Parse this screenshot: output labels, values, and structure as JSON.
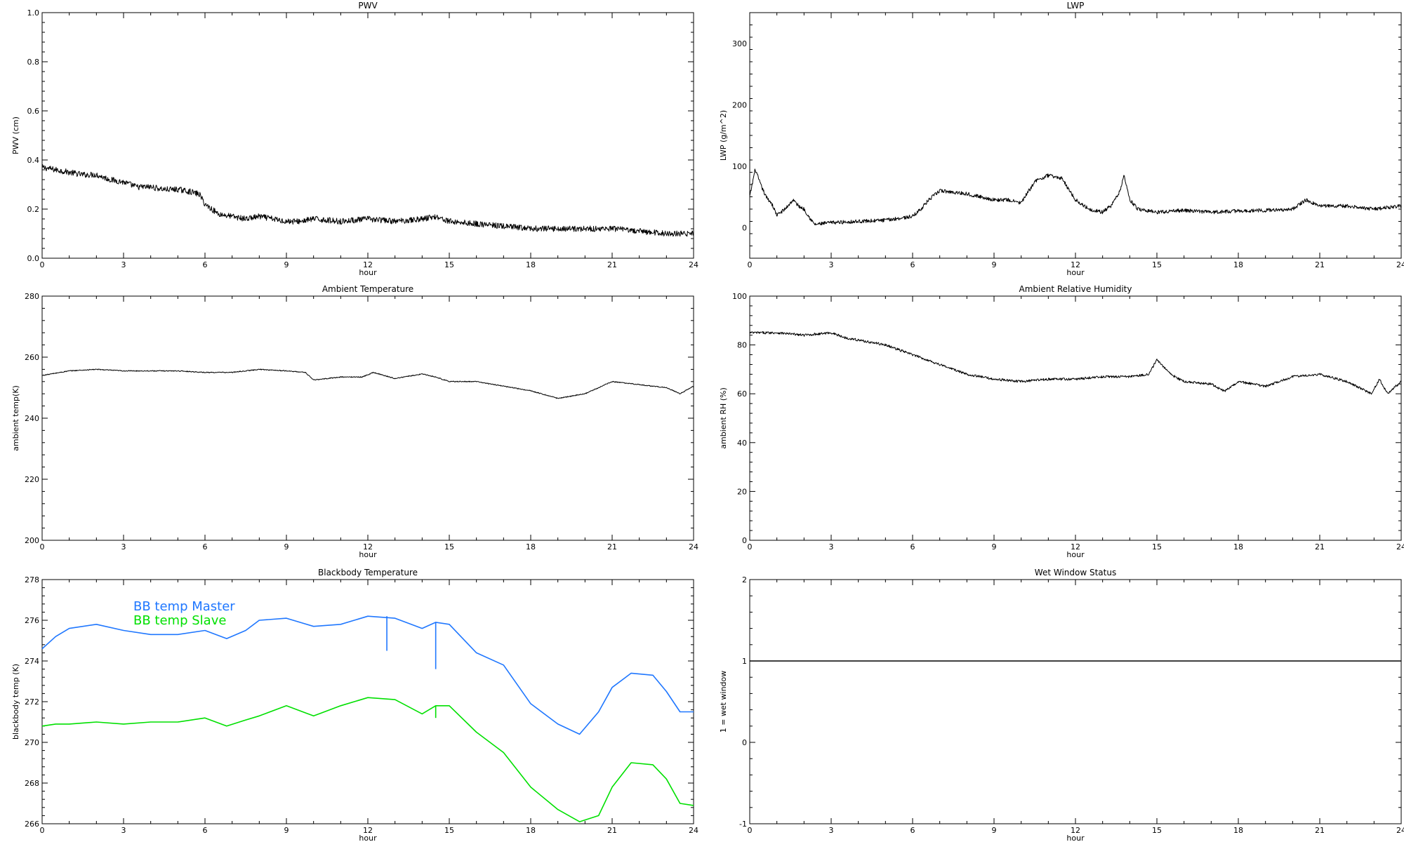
{
  "chart_data": [
    {
      "type": "line",
      "title": "PWV",
      "xlabel": "hour",
      "ylabel": "PWV (cm)",
      "xlim": [
        0,
        24
      ],
      "ylim": [
        0,
        1.0
      ],
      "xticks": [
        0,
        3,
        6,
        9,
        12,
        15,
        18,
        21,
        24
      ],
      "yticks": [
        0.0,
        0.2,
        0.4,
        0.6,
        0.8,
        1.0
      ],
      "ytick_labels": [
        "0.0",
        "0.2",
        "0.4",
        "0.6",
        "0.8",
        "1.0"
      ],
      "grid": false,
      "noise": 0.012,
      "series": [
        {
          "color": "#000000",
          "x": [
            0,
            0.5,
            1,
            1.5,
            2,
            2.5,
            3,
            3.5,
            4,
            4.5,
            5,
            5.5,
            5.8,
            6,
            6.5,
            7,
            7.5,
            8,
            8.5,
            9,
            9.5,
            10,
            11,
            12,
            13,
            14,
            14.5,
            15,
            16,
            17,
            18,
            19,
            20,
            21,
            22,
            23,
            24
          ],
          "y": [
            0.37,
            0.36,
            0.35,
            0.34,
            0.34,
            0.32,
            0.31,
            0.29,
            0.29,
            0.28,
            0.28,
            0.27,
            0.26,
            0.22,
            0.18,
            0.17,
            0.16,
            0.17,
            0.16,
            0.15,
            0.15,
            0.16,
            0.15,
            0.16,
            0.15,
            0.16,
            0.17,
            0.15,
            0.14,
            0.13,
            0.12,
            0.12,
            0.12,
            0.12,
            0.11,
            0.1,
            0.1
          ]
        }
      ]
    },
    {
      "type": "line",
      "title": "LWP",
      "xlabel": "hour",
      "ylabel": "LWP (g/m^2)",
      "xlim": [
        0,
        24
      ],
      "ylim": [
        -50,
        350
      ],
      "xticks": [
        0,
        3,
        6,
        9,
        12,
        15,
        18,
        21,
        24
      ],
      "yticks": [
        0,
        100,
        200,
        300
      ],
      "ytick_labels": [
        "0",
        "100",
        "200",
        "300"
      ],
      "grid": false,
      "noise": 3,
      "series": [
        {
          "color": "#000000",
          "x": [
            0,
            0.2,
            0.4,
            0.6,
            0.8,
            1,
            1.3,
            1.6,
            1.8,
            2,
            2.3,
            2.4,
            3,
            4,
            5,
            6,
            6.3,
            6.6,
            7,
            8,
            8.5,
            9,
            9.5,
            10,
            10.5,
            11,
            11.5,
            12,
            12.5,
            13,
            13.3,
            13.6,
            13.8,
            14,
            14.3,
            14.6,
            15,
            16,
            17,
            18,
            19,
            20,
            20.5,
            21,
            22,
            23,
            24
          ],
          "y": [
            50,
            95,
            70,
            50,
            40,
            20,
            30,
            45,
            35,
            30,
            10,
            5,
            8,
            10,
            12,
            18,
            30,
            45,
            60,
            55,
            50,
            45,
            45,
            40,
            75,
            85,
            80,
            45,
            30,
            25,
            35,
            55,
            85,
            45,
            30,
            28,
            25,
            28,
            25,
            27,
            28,
            30,
            45,
            35,
            35,
            30,
            35
          ]
        }
      ]
    },
    {
      "type": "line",
      "title": "Ambient Temperature",
      "xlabel": "hour",
      "ylabel": "ambient temp(K)",
      "xlim": [
        0,
        24
      ],
      "ylim": [
        200,
        280
      ],
      "xticks": [
        0,
        3,
        6,
        9,
        12,
        15,
        18,
        21,
        24
      ],
      "yticks": [
        200,
        220,
        240,
        260,
        280
      ],
      "ytick_labels": [
        "200",
        "220",
        "240",
        "260",
        "280"
      ],
      "grid": false,
      "noise": 0.15,
      "series": [
        {
          "color": "#000000",
          "x": [
            0,
            1,
            2,
            3,
            4,
            5,
            6,
            7,
            8,
            9,
            9.7,
            10,
            11,
            11.8,
            12.2,
            13,
            14,
            14.5,
            15,
            16,
            17,
            18,
            19,
            20,
            21,
            22,
            23,
            23.5,
            24
          ],
          "y": [
            254,
            255.5,
            256,
            255.5,
            255.5,
            255.5,
            255,
            255,
            256,
            255.5,
            255,
            252.5,
            253.5,
            253.5,
            255,
            253,
            254.5,
            253.5,
            252,
            252,
            250.5,
            249,
            246.5,
            248,
            252,
            251,
            250,
            248,
            250.5
          ]
        }
      ]
    },
    {
      "type": "line",
      "title": "Ambient Relative Humidity",
      "xlabel": "hour",
      "ylabel": "ambient RH (%)",
      "xlim": [
        0,
        24
      ],
      "ylim": [
        0,
        100
      ],
      "xticks": [
        0,
        3,
        6,
        9,
        12,
        15,
        18,
        21,
        24
      ],
      "yticks": [
        0,
        20,
        40,
        60,
        80,
        100
      ],
      "ytick_labels": [
        "0",
        "20",
        "40",
        "60",
        "80",
        "100"
      ],
      "grid": false,
      "noise": 0.5,
      "series": [
        {
          "color": "#000000",
          "x": [
            0,
            1,
            2,
            3,
            3.5,
            4,
            5,
            6,
            7,
            8,
            9,
            10,
            11,
            12,
            13,
            14,
            14.7,
            15,
            15.5,
            16,
            17,
            17.5,
            18,
            19,
            20,
            21,
            22,
            22.9,
            23.2,
            23.5,
            24
          ],
          "y": [
            85,
            85,
            84,
            85,
            83,
            82,
            80,
            76,
            72,
            68,
            66,
            65,
            66,
            66,
            67,
            67,
            68,
            74,
            68,
            65,
            64,
            61,
            65,
            63,
            67,
            68,
            65,
            60,
            66,
            60,
            65
          ]
        }
      ]
    },
    {
      "type": "line",
      "title": "Blackbody Temperature",
      "xlabel": "hour",
      "ylabel": "blackbody temp (K)",
      "xlim": [
        0,
        24
      ],
      "ylim": [
        266,
        278
      ],
      "xticks": [
        0,
        3,
        6,
        9,
        12,
        15,
        18,
        21,
        24
      ],
      "yticks": [
        266,
        268,
        270,
        272,
        274,
        276,
        278
      ],
      "ytick_labels": [
        "266",
        "268",
        "270",
        "272",
        "274",
        "276",
        "278"
      ],
      "grid": false,
      "noise": 0,
      "series": [
        {
          "name": "BB temp Master",
          "color": "#1f77ff",
          "x": [
            0,
            0.5,
            1,
            2,
            3,
            4,
            5,
            6,
            6.8,
            7.5,
            8,
            9,
            10,
            11,
            12,
            13,
            14,
            14.5,
            15,
            16,
            17,
            18,
            19,
            19.8,
            20.5,
            21,
            21.7,
            22.5,
            23,
            23.5,
            24
          ],
          "y": [
            274.6,
            275.2,
            275.6,
            275.8,
            275.5,
            275.3,
            275.3,
            275.5,
            275.1,
            275.5,
            276,
            276.1,
            275.7,
            275.8,
            276.2,
            276.1,
            275.6,
            275.9,
            275.8,
            274.4,
            273.8,
            271.9,
            270.9,
            270.4,
            271.5,
            272.7,
            273.4,
            273.3,
            272.5,
            271.5,
            271.5
          ]
        },
        {
          "name": "BB temp Slave",
          "color": "#00e000",
          "x": [
            0,
            0.5,
            1,
            2,
            3,
            4,
            5,
            6,
            6.8,
            7.5,
            8,
            9,
            10,
            11,
            12,
            13,
            14,
            14.5,
            15,
            16,
            17,
            18,
            19,
            19.8,
            20.5,
            21,
            21.7,
            22.5,
            23,
            23.5,
            24
          ],
          "y": [
            270.8,
            270.9,
            270.9,
            271,
            270.9,
            271,
            271,
            271.2,
            270.8,
            271.1,
            271.3,
            271.8,
            271.3,
            271.8,
            272.2,
            272.1,
            271.4,
            271.8,
            271.8,
            270.5,
            269.5,
            267.8,
            266.7,
            266.1,
            266.4,
            267.8,
            269,
            268.9,
            268.2,
            267,
            266.9
          ]
        }
      ],
      "spikes": [
        {
          "series": 0,
          "x": 12.7,
          "y0": 276.2,
          "y1": 274.5
        },
        {
          "series": 0,
          "x": 14.5,
          "y0": 275.9,
          "y1": 273.6
        },
        {
          "series": 1,
          "x": 14.5,
          "y0": 271.8,
          "y1": 271.2
        }
      ]
    },
    {
      "type": "line",
      "title": "Wet Window Status",
      "xlabel": "hour",
      "ylabel": "1 = wet window",
      "xlim": [
        0,
        24
      ],
      "ylim": [
        -1,
        2
      ],
      "xticks": [
        0,
        3,
        6,
        9,
        12,
        15,
        18,
        21,
        24
      ],
      "yticks": [
        -1,
        0,
        1,
        2
      ],
      "ytick_labels": [
        "-1",
        "0",
        "1",
        "2"
      ],
      "grid": false,
      "noise": 0,
      "series": [
        {
          "color": "#000000",
          "x": [
            0,
            24
          ],
          "y": [
            1,
            1
          ]
        }
      ]
    }
  ]
}
